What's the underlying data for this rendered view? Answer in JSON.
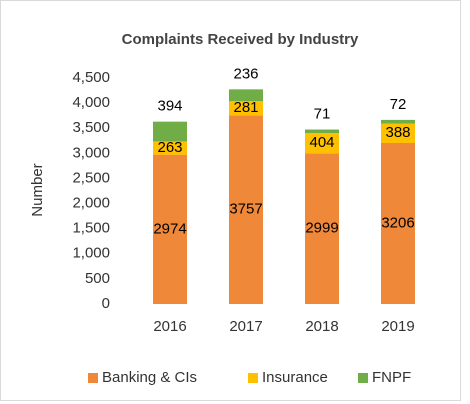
{
  "chart_data": {
    "type": "stacked_bar",
    "title": "Complaints Received by Industry",
    "y_label": "Number",
    "categories": [
      "2016",
      "2017",
      "2018",
      "2019"
    ],
    "series": [
      {
        "name": "Banking & CIs",
        "color": "#f0883a",
        "values": [
          2974,
          3757,
          2999,
          3206
        ]
      },
      {
        "name": "Insurance",
        "color": "#ffc000",
        "values": [
          263,
          281,
          404,
          388
        ]
      },
      {
        "name": "FNPF",
        "color": "#70ad47",
        "values": [
          394,
          236,
          71,
          72
        ]
      }
    ],
    "ylim": [
      0,
      4500
    ],
    "yticks": [
      0,
      500,
      {
        "value": 1000,
        "label": "1,000"
      },
      {
        "value": 1500,
        "label": "1,500"
      },
      {
        "value": 2000,
        "label": "2,000"
      },
      {
        "value": 2500,
        "label": "2,500"
      },
      {
        "value": 3000,
        "label": "3,000"
      },
      {
        "value": 3500,
        "label": "3,500"
      },
      {
        "value": 4000,
        "label": "4,000"
      },
      {
        "value": 4500,
        "label": "4,500"
      }
    ],
    "grid": false,
    "legend": "bottom"
  }
}
